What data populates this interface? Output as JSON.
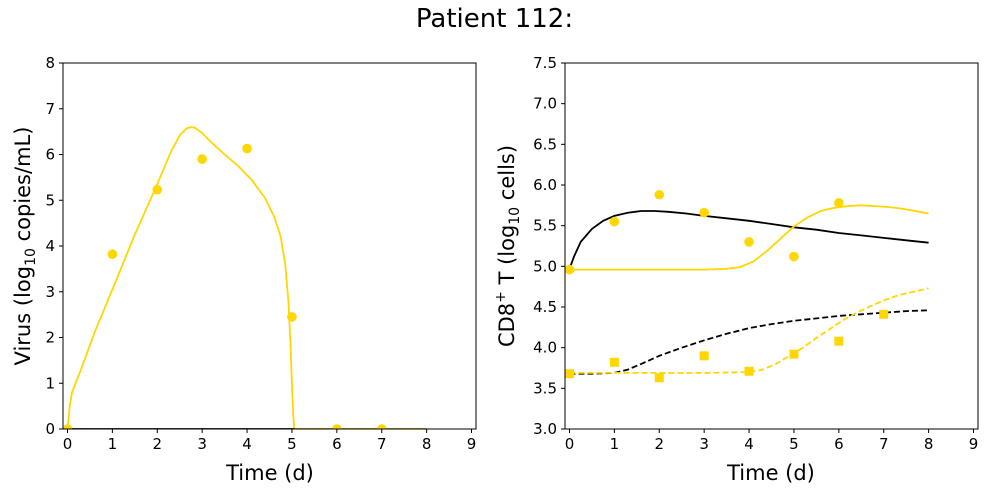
{
  "figure": {
    "title": "Patient 112:"
  },
  "colors": {
    "gold": "#FFD700",
    "black": "#000000"
  },
  "chart_data": [
    {
      "type": "line",
      "name": "virus-panel",
      "xlabel": "Time (d)",
      "ylabel_parts": [
        "Virus (log",
        "10",
        " copies/mL)"
      ],
      "xlim": [
        -0.1,
        9.1
      ],
      "ylim": [
        0,
        8
      ],
      "xticks": [
        "0",
        "1",
        "2",
        "3",
        "4",
        "5",
        "6",
        "7",
        "8",
        "9"
      ],
      "yticks": [
        "0",
        "1",
        "2",
        "3",
        "4",
        "5",
        "6",
        "7",
        "8"
      ],
      "series": [
        {
          "style": "line",
          "color": "#FFD700",
          "dash": false,
          "x": [
            0,
            0.05,
            0.1,
            0.3,
            0.6,
            1.0,
            1.5,
            2.0,
            2.3,
            2.5,
            2.65,
            2.75,
            2.85,
            3.0,
            3.2,
            3.5,
            3.8,
            4.1,
            4.4,
            4.6,
            4.75,
            4.85,
            4.92,
            4.97,
            5.0,
            5.03,
            5.05
          ],
          "y": [
            0,
            0.5,
            0.8,
            1.3,
            2.1,
            3.05,
            4.25,
            5.35,
            6.05,
            6.42,
            6.57,
            6.6,
            6.58,
            6.47,
            6.27,
            6.0,
            5.75,
            5.45,
            5.05,
            4.65,
            4.2,
            3.6,
            2.8,
            1.8,
            1.0,
            0.3,
            0
          ]
        },
        {
          "style": "line",
          "color": "#000000",
          "dash": false,
          "x": [
            0,
            8
          ],
          "y": [
            0,
            0
          ]
        },
        {
          "style": "line",
          "color": "#FFD700",
          "dash": false,
          "x": [
            5.05,
            8
          ],
          "y": [
            0,
            0
          ]
        },
        {
          "style": "points",
          "marker": "circle",
          "color": "#FFD700",
          "x": [
            0,
            1,
            2,
            3,
            4,
            5,
            6,
            7
          ],
          "y": [
            0,
            3.82,
            5.23,
            5.9,
            6.13,
            2.45,
            0,
            0
          ]
        }
      ]
    },
    {
      "type": "line",
      "name": "cd8-panel",
      "xlabel": "Time (d)",
      "ylabel_parts": [
        "CD8",
        "+",
        " T (log",
        "10",
        " cells)"
      ],
      "xlim": [
        -0.1,
        9.1
      ],
      "ylim": [
        3.0,
        7.5
      ],
      "xticks": [
        "0",
        "1",
        "2",
        "3",
        "4",
        "5",
        "6",
        "7",
        "8",
        "9"
      ],
      "yticks": [
        "3.0",
        "3.5",
        "4.0",
        "4.5",
        "5.0",
        "5.5",
        "6.0",
        "6.5",
        "7.0",
        "7.5"
      ],
      "series": [
        {
          "style": "line",
          "color": "#000000",
          "dash": false,
          "x": [
            0,
            0.1,
            0.25,
            0.5,
            0.75,
            1.0,
            1.3,
            1.6,
            1.9,
            2.2,
            2.6,
            3.0,
            3.5,
            4.0,
            4.5,
            5.0,
            5.5,
            6.0,
            6.5,
            7.0,
            7.5,
            8.0
          ],
          "y": [
            4.97,
            5.12,
            5.3,
            5.46,
            5.56,
            5.62,
            5.66,
            5.68,
            5.68,
            5.67,
            5.65,
            5.62,
            5.59,
            5.56,
            5.52,
            5.48,
            5.45,
            5.41,
            5.38,
            5.35,
            5.32,
            5.29
          ]
        },
        {
          "style": "line",
          "color": "#FFD700",
          "dash": false,
          "x": [
            0,
            1.0,
            2.0,
            3.0,
            3.5,
            3.8,
            4.1,
            4.4,
            4.7,
            5.0,
            5.3,
            5.6,
            5.9,
            6.2,
            6.5,
            6.8,
            7.1,
            7.4,
            7.7,
            8.0
          ],
          "y": [
            4.96,
            4.96,
            4.96,
            4.96,
            4.97,
            4.99,
            5.06,
            5.19,
            5.34,
            5.49,
            5.6,
            5.68,
            5.72,
            5.74,
            5.75,
            5.74,
            5.73,
            5.71,
            5.68,
            5.65
          ]
        },
        {
          "style": "line",
          "color": "#000000",
          "dash": true,
          "x": [
            0,
            0.5,
            1.0,
            1.3,
            1.6,
            2.0,
            2.5,
            3.0,
            3.5,
            4.0,
            4.5,
            5.0,
            5.5,
            6.0,
            6.5,
            7.0,
            7.5,
            8.0
          ],
          "y": [
            3.68,
            3.68,
            3.69,
            3.73,
            3.8,
            3.9,
            4.0,
            4.09,
            4.17,
            4.24,
            4.29,
            4.33,
            4.36,
            4.39,
            4.41,
            4.43,
            4.45,
            4.46
          ]
        },
        {
          "style": "line",
          "color": "#FFD700",
          "dash": true,
          "x": [
            0,
            1.0,
            2.0,
            3.0,
            4.0,
            4.3,
            4.6,
            4.9,
            5.2,
            5.5,
            5.8,
            6.1,
            6.4,
            6.7,
            7.0,
            7.3,
            7.6,
            8.0
          ],
          "y": [
            3.69,
            3.69,
            3.69,
            3.69,
            3.7,
            3.73,
            3.8,
            3.9,
            4.0,
            4.12,
            4.23,
            4.34,
            4.43,
            4.51,
            4.58,
            4.64,
            4.68,
            4.73
          ]
        },
        {
          "style": "points",
          "marker": "circle",
          "color": "#FFD700",
          "x": [
            0,
            1,
            2,
            3,
            4,
            5,
            6
          ],
          "y": [
            4.96,
            5.55,
            5.88,
            5.66,
            5.3,
            5.12,
            5.78
          ]
        },
        {
          "style": "points",
          "marker": "square",
          "color": "#FFD700",
          "x": [
            0,
            1,
            2,
            3,
            4,
            5,
            6,
            7
          ],
          "y": [
            3.68,
            3.82,
            3.63,
            3.9,
            3.71,
            3.92,
            4.08,
            4.41
          ]
        }
      ]
    }
  ]
}
